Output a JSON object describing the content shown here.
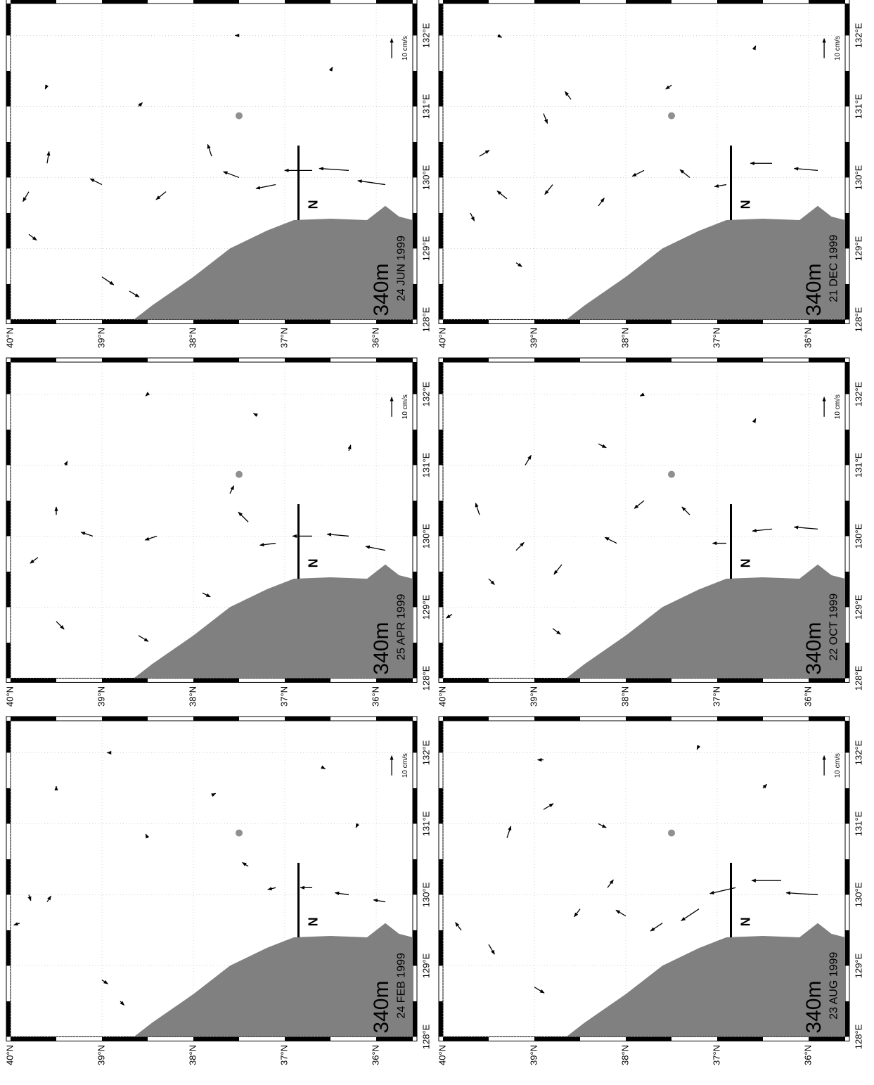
{
  "lat_ticks": [
    {
      "value": 40,
      "label": "40°N"
    },
    {
      "value": 39,
      "label": "39°N"
    },
    {
      "value": 38,
      "label": "38°N"
    },
    {
      "value": 37,
      "label": "37°N"
    },
    {
      "value": 36,
      "label": "36°N"
    }
  ],
  "lon_ticks": [
    {
      "value": 128,
      "label": "128°E"
    },
    {
      "value": 129,
      "label": "129°E"
    },
    {
      "value": 130,
      "label": "130°E"
    },
    {
      "value": 131,
      "label": "131°E"
    },
    {
      "value": 132,
      "label": "132°E"
    }
  ],
  "grid": true,
  "panels": [
    {
      "depth": "340m",
      "date": "24 FEB 1999",
      "section_label": "N",
      "scale": {
        "value": 10,
        "label": "10 cm/s"
      },
      "vectors": [
        [
          129.9,
          35.9,
          1,
          6
        ],
        [
          130.0,
          36.3,
          1,
          7
        ],
        [
          130.1,
          36.7,
          0,
          6
        ],
        [
          130.1,
          37.1,
          -1,
          4
        ],
        [
          130.4,
          37.4,
          2,
          3
        ],
        [
          129.9,
          39.6,
          3,
          -2
        ],
        [
          130.0,
          39.8,
          -3,
          -1
        ],
        [
          129.6,
          39.9,
          -1,
          3
        ],
        [
          128.8,
          39.0,
          -2,
          -3
        ],
        [
          128.5,
          38.8,
          -2,
          -2
        ],
        [
          130.8,
          38.5,
          2,
          1
        ],
        [
          131.4,
          37.8,
          1,
          -2
        ],
        [
          131.8,
          36.6,
          -1,
          -2
        ],
        [
          131.0,
          36.2,
          -2,
          1
        ],
        [
          132.0,
          38.9,
          0,
          2
        ],
        [
          131.5,
          39.5,
          1,
          0
        ]
      ]
    },
    {
      "depth": "340m",
      "date": "25 APR 1999",
      "section_label": "N",
      "scale": {
        "value": 10,
        "label": "10 cm/s"
      },
      "vectors": [
        [
          129.8,
          35.9,
          2,
          10
        ],
        [
          130.0,
          36.3,
          1,
          11
        ],
        [
          130.0,
          36.7,
          0,
          10
        ],
        [
          129.9,
          37.1,
          -1,
          8
        ],
        [
          130.2,
          37.4,
          5,
          5
        ],
        [
          130.6,
          37.6,
          4,
          -2
        ],
        [
          130.0,
          38.4,
          -2,
          6
        ],
        [
          130.0,
          39.1,
          2,
          6
        ],
        [
          130.3,
          39.5,
          4,
          0
        ],
        [
          129.7,
          39.7,
          -3,
          4
        ],
        [
          128.8,
          39.5,
          -4,
          -4
        ],
        [
          128.6,
          38.6,
          -3,
          -5
        ],
        [
          129.2,
          37.9,
          -2,
          -4
        ],
        [
          131.2,
          36.3,
          3,
          -1
        ],
        [
          131.7,
          37.3,
          1,
          2
        ],
        [
          132.0,
          38.5,
          -1,
          1
        ],
        [
          131.0,
          39.4,
          2,
          -1
        ]
      ]
    },
    {
      "depth": "340m",
      "date": "24 JUN 1999",
      "section_label": "N",
      "scale": {
        "value": 10,
        "label": "10 cm/s"
      },
      "vectors": [
        [
          129.9,
          35.9,
          2,
          14
        ],
        [
          130.1,
          36.3,
          1,
          15
        ],
        [
          130.1,
          36.7,
          0,
          14
        ],
        [
          129.9,
          37.1,
          -2,
          10
        ],
        [
          130.0,
          37.5,
          3,
          8
        ],
        [
          130.3,
          37.8,
          6,
          2
        ],
        [
          129.8,
          38.3,
          -4,
          5
        ],
        [
          129.9,
          39.0,
          3,
          6
        ],
        [
          130.2,
          39.6,
          6,
          -1
        ],
        [
          129.8,
          39.8,
          -5,
          3
        ],
        [
          129.2,
          39.8,
          -3,
          -4
        ],
        [
          128.6,
          39.0,
          -4,
          -6
        ],
        [
          128.4,
          38.7,
          -3,
          -5
        ],
        [
          131.0,
          38.6,
          2,
          -2
        ],
        [
          131.5,
          36.5,
          2,
          -1
        ],
        [
          132.0,
          37.5,
          0,
          2
        ],
        [
          131.3,
          39.6,
          -2,
          1
        ]
      ]
    },
    {
      "depth": "340m",
      "date": "23 AUG 1999",
      "section_label": "N",
      "scale": {
        "value": 10,
        "label": "10 cm/s"
      },
      "vectors": [
        [
          130.0,
          35.9,
          1,
          16
        ],
        [
          130.2,
          36.3,
          0,
          15
        ],
        [
          130.1,
          36.8,
          -3,
          13
        ],
        [
          129.8,
          37.2,
          -6,
          9
        ],
        [
          129.6,
          37.6,
          -4,
          6
        ],
        [
          129.7,
          38.0,
          3,
          5
        ],
        [
          130.1,
          38.2,
          4,
          -3
        ],
        [
          129.8,
          38.5,
          -4,
          3
        ],
        [
          129.3,
          39.5,
          -5,
          -3
        ],
        [
          129.5,
          39.8,
          4,
          3
        ],
        [
          128.7,
          39.0,
          -3,
          -5
        ],
        [
          130.8,
          39.3,
          6,
          -2
        ],
        [
          131.2,
          38.9,
          3,
          -5
        ],
        [
          131.0,
          38.3,
          -2,
          -4
        ],
        [
          131.9,
          38.9,
          0,
          3
        ],
        [
          131.5,
          36.5,
          2,
          -2
        ],
        [
          132.1,
          37.2,
          -2,
          1
        ]
      ]
    },
    {
      "depth": "340m",
      "date": "22 OCT 1999",
      "section_label": "N",
      "scale": {
        "value": 10,
        "label": "10 cm/s"
      },
      "vectors": [
        [
          130.1,
          35.9,
          1,
          12
        ],
        [
          130.1,
          36.4,
          -1,
          10
        ],
        [
          129.9,
          36.9,
          0,
          7
        ],
        [
          130.3,
          37.3,
          4,
          4
        ],
        [
          130.5,
          37.8,
          -4,
          5
        ],
        [
          129.9,
          38.1,
          3,
          6
        ],
        [
          129.6,
          38.7,
          -5,
          4
        ],
        [
          129.8,
          39.2,
          4,
          -4
        ],
        [
          129.4,
          39.5,
          -3,
          -3
        ],
        [
          130.3,
          39.6,
          6,
          2
        ],
        [
          131.0,
          39.1,
          5,
          -3
        ],
        [
          131.3,
          38.3,
          -2,
          -4
        ],
        [
          128.7,
          38.8,
          -3,
          -4
        ],
        [
          128.9,
          39.9,
          -2,
          3
        ],
        [
          131.6,
          36.6,
          2,
          -1
        ],
        [
          132.0,
          37.8,
          -1,
          2
        ]
      ]
    },
    {
      "depth": "340m",
      "date": "21 DEC 1999",
      "section_label": "N",
      "scale": {
        "value": 10,
        "label": "10 cm/s"
      },
      "vectors": [
        [
          130.1,
          35.9,
          1,
          12
        ],
        [
          130.2,
          36.4,
          0,
          11
        ],
        [
          129.9,
          36.9,
          -1,
          6
        ],
        [
          130.0,
          37.3,
          4,
          5
        ],
        [
          130.1,
          37.8,
          -3,
          6
        ],
        [
          129.6,
          38.3,
          4,
          -3
        ],
        [
          129.9,
          38.8,
          -5,
          4
        ],
        [
          129.7,
          39.3,
          4,
          5
        ],
        [
          129.5,
          39.7,
          -4,
          -2
        ],
        [
          130.3,
          39.6,
          3,
          -5
        ],
        [
          130.9,
          38.9,
          -5,
          -2
        ],
        [
          131.1,
          38.6,
          4,
          3
        ],
        [
          131.3,
          37.5,
          -2,
          3
        ],
        [
          128.8,
          39.2,
          -2,
          -3
        ],
        [
          131.8,
          36.6,
          2,
          -1
        ],
        [
          132.0,
          39.4,
          -1,
          -2
        ]
      ]
    }
  ]
}
